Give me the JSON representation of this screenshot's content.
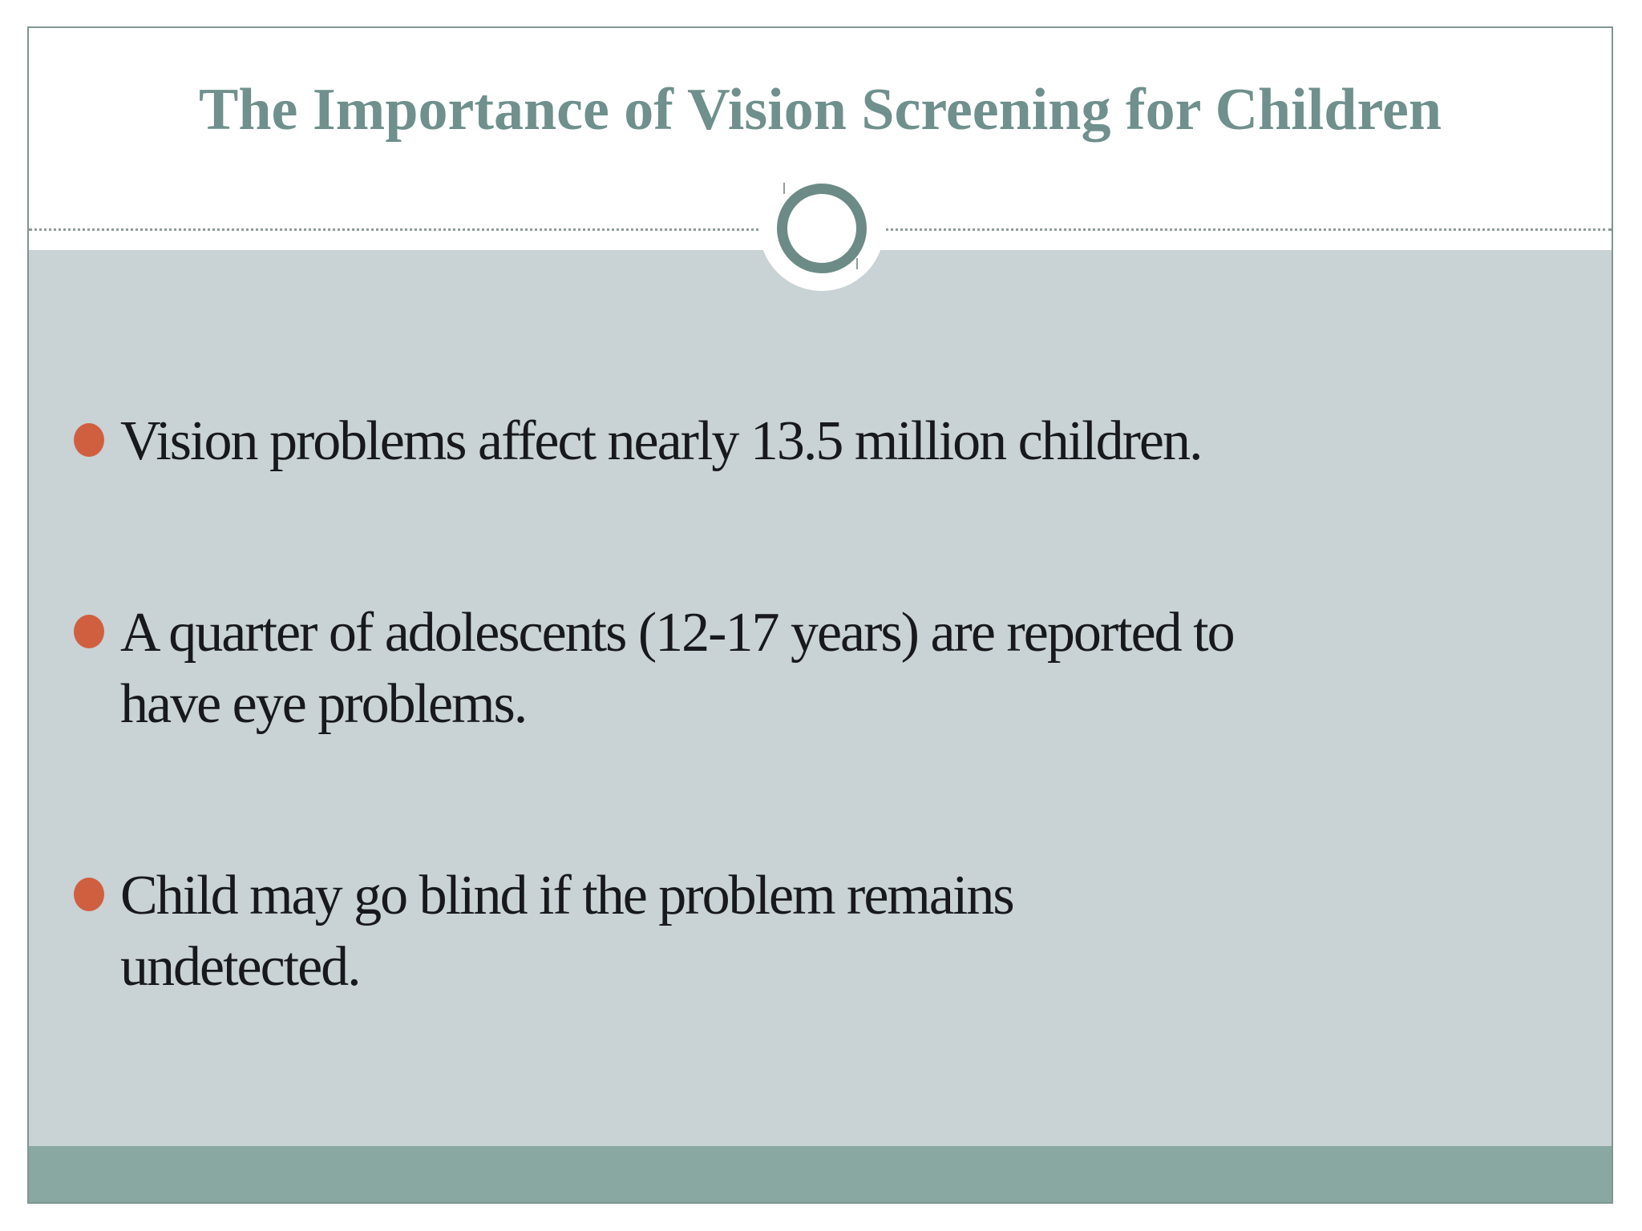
{
  "slide": {
    "title": "The Importance of Vision Screening for Children",
    "bullets": [
      {
        "lines": [
          "Vision problems affect nearly 13.5 million children."
        ]
      },
      {
        "lines": [
          "A quarter of adolescents (12-17 years) are reported to",
          "have eye problems."
        ]
      },
      {
        "lines": [
          "Child may go blind if the problem remains",
          "undetected."
        ]
      }
    ],
    "colors": {
      "title_text": "#6f908d",
      "body_text": "#17191c",
      "content_background": "#c9d2d5",
      "footer_bar": "#8aa8a2",
      "bullet_marker": "#d05f40",
      "ornament_ring": "#6d8b86",
      "slide_border": "#7e9692",
      "dotted_divider": "#8e9c99"
    }
  }
}
